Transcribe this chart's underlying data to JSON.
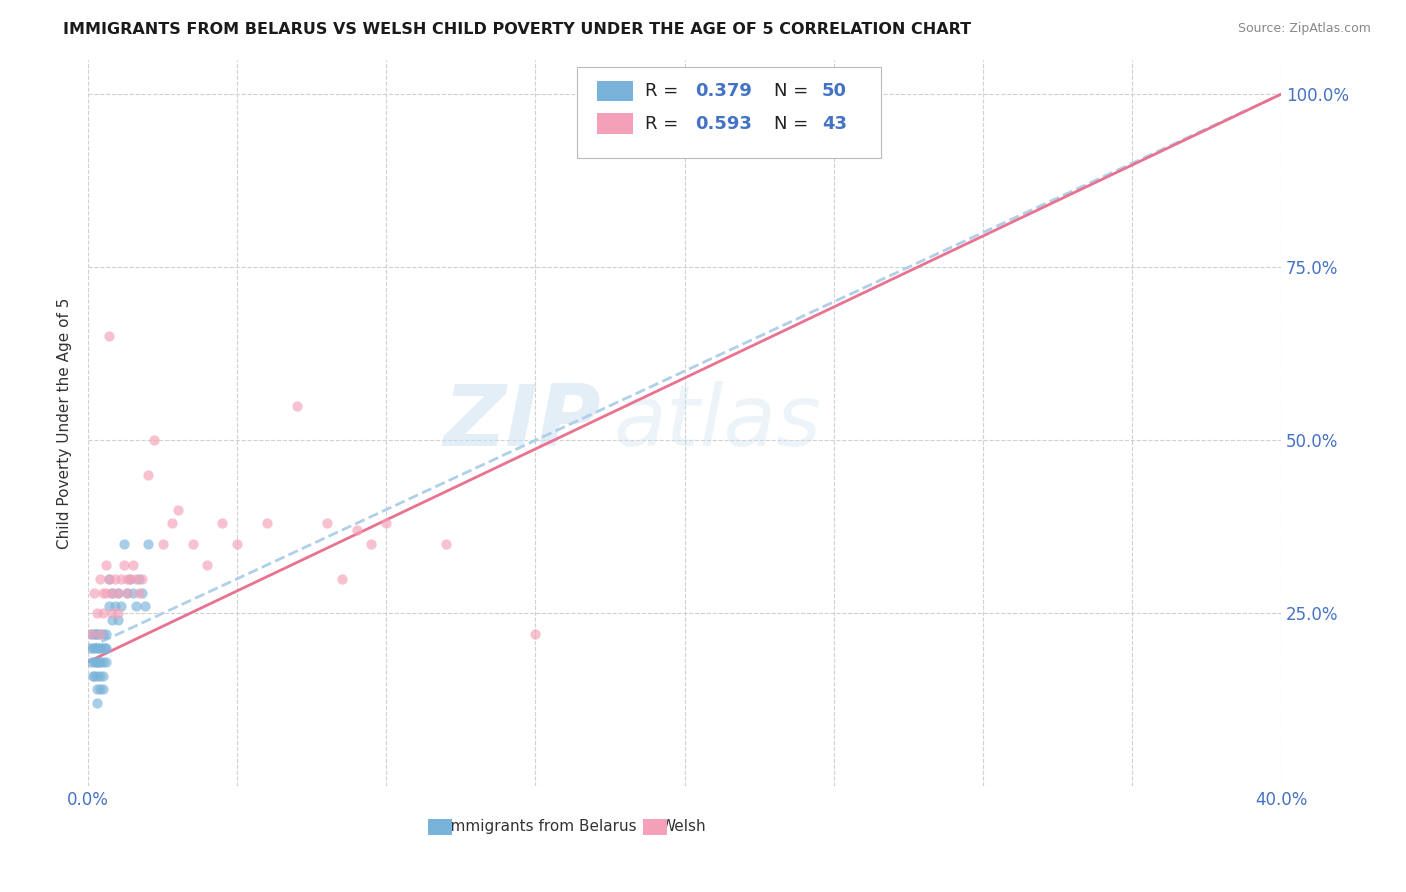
{
  "title": "IMMIGRANTS FROM BELARUS VS WELSH CHILD POVERTY UNDER THE AGE OF 5 CORRELATION CHART",
  "source": "Source: ZipAtlas.com",
  "ylabel": "Child Poverty Under the Age of 5",
  "xlim": [
    0.0,
    0.4
  ],
  "ylim": [
    0.0,
    1.05
  ],
  "blue_color": "#7ab3d9",
  "pink_color": "#f4a0b8",
  "blue_line_color": "#b0cfe8",
  "pink_line_color": "#e8728f",
  "R_blue": 0.379,
  "N_blue": 50,
  "R_pink": 0.593,
  "N_pink": 43,
  "legend_label_blue": "Immigrants from Belarus",
  "legend_label_pink": "Welsh",
  "watermark_zip": "ZIP",
  "watermark_atlas": "atlas",
  "blue_scatter_x": [
    0.0005,
    0.001,
    0.001,
    0.0015,
    0.0015,
    0.002,
    0.002,
    0.002,
    0.002,
    0.0025,
    0.0025,
    0.003,
    0.003,
    0.003,
    0.003,
    0.003,
    0.003,
    0.0035,
    0.0035,
    0.004,
    0.004,
    0.004,
    0.004,
    0.004,
    0.005,
    0.005,
    0.005,
    0.005,
    0.005,
    0.0055,
    0.006,
    0.006,
    0.006,
    0.007,
    0.007,
    0.008,
    0.008,
    0.009,
    0.01,
    0.01,
    0.011,
    0.012,
    0.013,
    0.014,
    0.015,
    0.016,
    0.017,
    0.018,
    0.019,
    0.02
  ],
  "blue_scatter_y": [
    0.2,
    0.22,
    0.18,
    0.2,
    0.16,
    0.22,
    0.2,
    0.18,
    0.16,
    0.22,
    0.18,
    0.22,
    0.2,
    0.18,
    0.16,
    0.14,
    0.12,
    0.2,
    0.18,
    0.22,
    0.2,
    0.18,
    0.16,
    0.14,
    0.22,
    0.2,
    0.18,
    0.16,
    0.14,
    0.2,
    0.22,
    0.2,
    0.18,
    0.3,
    0.26,
    0.28,
    0.24,
    0.26,
    0.28,
    0.24,
    0.26,
    0.35,
    0.28,
    0.3,
    0.28,
    0.26,
    0.3,
    0.28,
    0.26,
    0.35
  ],
  "pink_scatter_x": [
    0.001,
    0.002,
    0.003,
    0.004,
    0.004,
    0.005,
    0.005,
    0.006,
    0.006,
    0.007,
    0.007,
    0.008,
    0.008,
    0.009,
    0.01,
    0.01,
    0.011,
    0.012,
    0.013,
    0.013,
    0.014,
    0.015,
    0.016,
    0.017,
    0.018,
    0.02,
    0.022,
    0.025,
    0.028,
    0.03,
    0.035,
    0.04,
    0.045,
    0.05,
    0.06,
    0.07,
    0.08,
    0.085,
    0.09,
    0.095,
    0.1,
    0.12,
    0.15
  ],
  "pink_scatter_y": [
    0.22,
    0.28,
    0.25,
    0.3,
    0.22,
    0.28,
    0.25,
    0.32,
    0.28,
    0.65,
    0.3,
    0.28,
    0.25,
    0.3,
    0.28,
    0.25,
    0.3,
    0.32,
    0.3,
    0.28,
    0.3,
    0.32,
    0.3,
    0.28,
    0.3,
    0.45,
    0.5,
    0.35,
    0.38,
    0.4,
    0.35,
    0.32,
    0.38,
    0.35,
    0.38,
    0.55,
    0.38,
    0.3,
    0.37,
    0.35,
    0.38,
    0.35,
    0.22
  ],
  "blue_line_x": [
    0.0,
    0.4
  ],
  "blue_line_y": [
    0.2,
    1.0
  ],
  "pink_line_x": [
    0.0,
    0.4
  ],
  "pink_line_y": [
    0.18,
    1.0
  ]
}
